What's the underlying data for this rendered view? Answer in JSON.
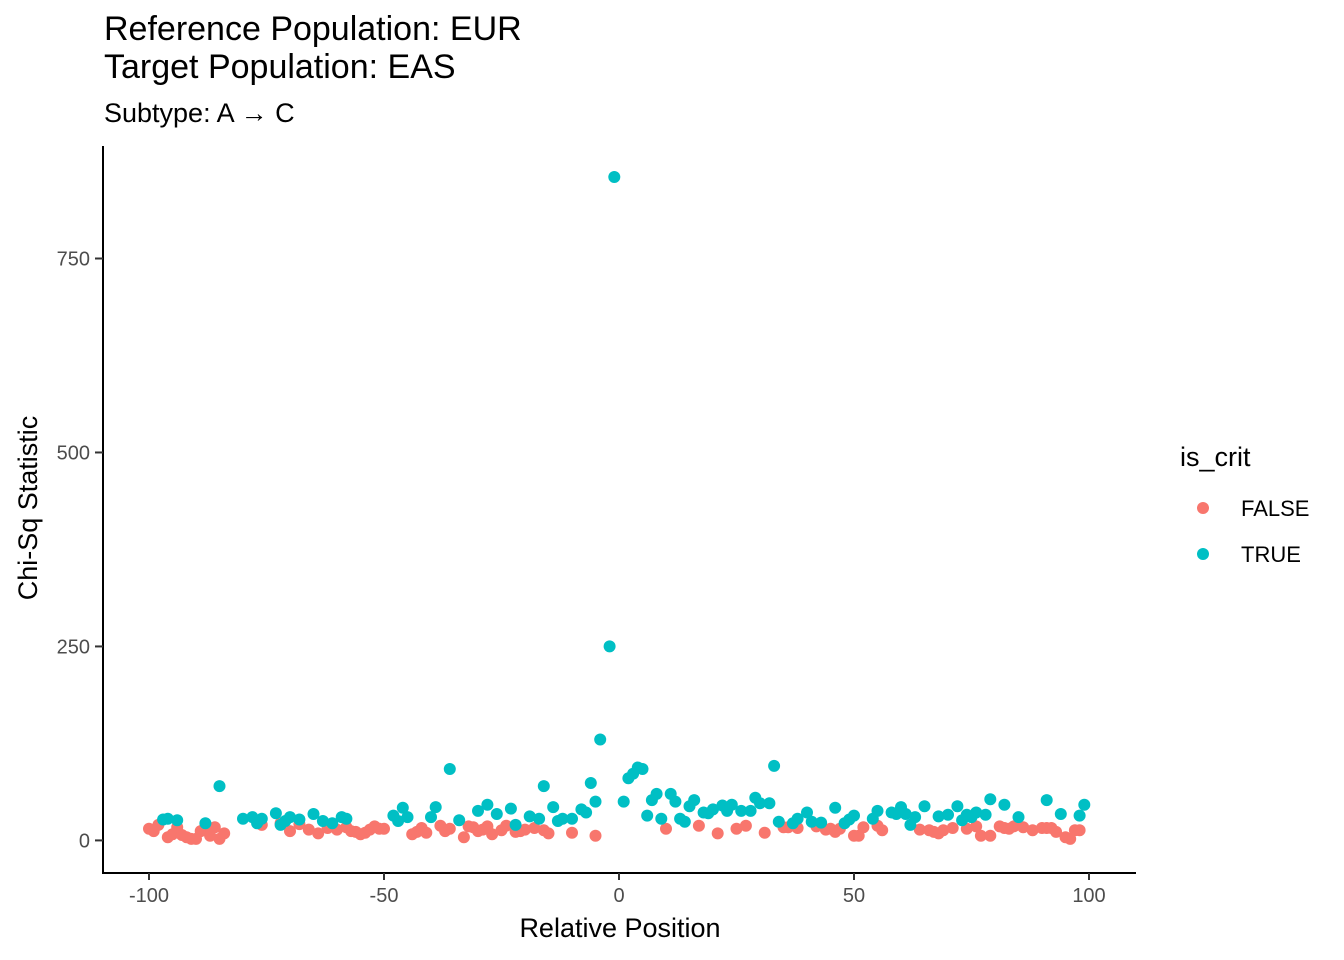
{
  "chart_data": {
    "type": "scatter",
    "title_lines": [
      "Reference Population: EUR",
      "Target Population: EAS"
    ],
    "subtitle": "Subtype: A → C",
    "xlabel": "Relative Position",
    "ylabel": "Chi-Sq Statistic",
    "xlim": [
      -110,
      110
    ],
    "ylim": [
      -42,
      895
    ],
    "xticks": [
      -100,
      -50,
      0,
      50,
      100
    ],
    "xtick_labels": [
      "-100",
      "-50",
      "0",
      "50",
      "100"
    ],
    "yticks": [
      0,
      250,
      500,
      750
    ],
    "ytick_labels": [
      "0",
      "250",
      "500",
      "750"
    ],
    "grid": false,
    "legend": {
      "title": "is_crit",
      "position": "right"
    },
    "series": [
      {
        "name": "FALSE",
        "color": "#F8766D",
        "points": [
          [
            -100,
            15
          ],
          [
            -99,
            12
          ],
          [
            -98,
            20
          ],
          [
            -96,
            4
          ],
          [
            -95,
            8
          ],
          [
            -94,
            17
          ],
          [
            -93,
            7
          ],
          [
            -92,
            4
          ],
          [
            -91,
            2
          ],
          [
            -90,
            2
          ],
          [
            -89,
            12
          ],
          [
            -88,
            19
          ],
          [
            -87,
            6
          ],
          [
            -86,
            17
          ],
          [
            -85,
            2
          ],
          [
            -84,
            9
          ],
          [
            -76,
            20
          ],
          [
            -72,
            22
          ],
          [
            -70,
            12
          ],
          [
            -68,
            21
          ],
          [
            -66,
            14
          ],
          [
            -64,
            9
          ],
          [
            -62,
            16
          ],
          [
            -60,
            14
          ],
          [
            -58,
            17
          ],
          [
            -57,
            12
          ],
          [
            -56,
            11
          ],
          [
            -55,
            8
          ],
          [
            -54,
            10
          ],
          [
            -53,
            14
          ],
          [
            -52,
            18
          ],
          [
            -51,
            15
          ],
          [
            -50,
            15
          ],
          [
            -44,
            8
          ],
          [
            -43,
            11
          ],
          [
            -42,
            16
          ],
          [
            -41,
            10
          ],
          [
            -38,
            19
          ],
          [
            -37,
            12
          ],
          [
            -36,
            15
          ],
          [
            -33,
            4
          ],
          [
            -32,
            18
          ],
          [
            -31,
            17
          ],
          [
            -30,
            12
          ],
          [
            -29,
            14
          ],
          [
            -28,
            18
          ],
          [
            -27,
            8
          ],
          [
            -25,
            13
          ],
          [
            -24,
            19
          ],
          [
            -22,
            11
          ],
          [
            -21,
            12
          ],
          [
            -20,
            14
          ],
          [
            -18,
            16
          ],
          [
            -16,
            13
          ],
          [
            -15,
            9
          ],
          [
            -10,
            10
          ],
          [
            -5,
            6
          ],
          [
            10,
            15
          ],
          [
            17,
            19
          ],
          [
            21,
            9
          ],
          [
            25,
            15
          ],
          [
            27,
            19
          ],
          [
            31,
            10
          ],
          [
            35,
            17
          ],
          [
            36,
            17
          ],
          [
            38,
            16
          ],
          [
            42,
            18
          ],
          [
            44,
            14
          ],
          [
            45,
            15
          ],
          [
            46,
            11
          ],
          [
            47,
            15
          ],
          [
            50,
            6
          ],
          [
            51,
            6
          ],
          [
            52,
            17
          ],
          [
            55,
            19
          ],
          [
            56,
            13
          ],
          [
            64,
            14
          ],
          [
            66,
            13
          ],
          [
            67,
            11
          ],
          [
            68,
            9
          ],
          [
            69,
            13
          ],
          [
            71,
            16
          ],
          [
            74,
            15
          ],
          [
            76,
            18
          ],
          [
            77,
            6
          ],
          [
            79,
            6
          ],
          [
            81,
            18
          ],
          [
            82,
            16
          ],
          [
            83,
            15
          ],
          [
            84,
            18
          ],
          [
            86,
            17
          ],
          [
            88,
            13
          ],
          [
            90,
            16
          ],
          [
            91,
            16
          ],
          [
            92,
            16
          ],
          [
            93,
            11
          ],
          [
            95,
            4
          ],
          [
            96,
            2
          ],
          [
            97,
            13
          ],
          [
            98,
            13
          ]
        ]
      },
      {
        "name": "TRUE",
        "color": "#00BFC4",
        "points": [
          [
            -97,
            27
          ],
          [
            -96,
            28
          ],
          [
            -94,
            26
          ],
          [
            -88,
            22
          ],
          [
            -85,
            70
          ],
          [
            -80,
            28
          ],
          [
            -78,
            30
          ],
          [
            -77,
            22
          ],
          [
            -76,
            28
          ],
          [
            -73,
            35
          ],
          [
            -72,
            20
          ],
          [
            -71,
            25
          ],
          [
            -70,
            30
          ],
          [
            -68,
            27
          ],
          [
            -65,
            34
          ],
          [
            -63,
            25
          ],
          [
            -61,
            22
          ],
          [
            -59,
            30
          ],
          [
            -58,
            28
          ],
          [
            -48,
            32
          ],
          [
            -47,
            25
          ],
          [
            -46,
            42
          ],
          [
            -45,
            30
          ],
          [
            -40,
            30
          ],
          [
            -39,
            43
          ],
          [
            -36,
            92
          ],
          [
            -34,
            26
          ],
          [
            -30,
            38
          ],
          [
            -28,
            46
          ],
          [
            -26,
            34
          ],
          [
            -23,
            41
          ],
          [
            -22,
            20
          ],
          [
            -19,
            31
          ],
          [
            -17,
            28
          ],
          [
            -16,
            70
          ],
          [
            -14,
            43
          ],
          [
            -13,
            25
          ],
          [
            -12,
            28
          ],
          [
            -10,
            28
          ],
          [
            -8,
            40
          ],
          [
            -7,
            36
          ],
          [
            -6,
            74
          ],
          [
            -5,
            50
          ],
          [
            -4,
            130
          ],
          [
            -2,
            250
          ],
          [
            -1,
            855
          ],
          [
            1,
            50
          ],
          [
            2,
            80
          ],
          [
            3,
            86
          ],
          [
            4,
            94
          ],
          [
            5,
            92
          ],
          [
            6,
            32
          ],
          [
            7,
            52
          ],
          [
            8,
            60
          ],
          [
            9,
            28
          ],
          [
            11,
            60
          ],
          [
            12,
            50
          ],
          [
            13,
            28
          ],
          [
            14,
            24
          ],
          [
            15,
            44
          ],
          [
            16,
            52
          ],
          [
            18,
            36
          ],
          [
            19,
            35
          ],
          [
            20,
            40
          ],
          [
            22,
            45
          ],
          [
            23,
            38
          ],
          [
            24,
            46
          ],
          [
            26,
            38
          ],
          [
            28,
            38
          ],
          [
            29,
            55
          ],
          [
            30,
            48
          ],
          [
            32,
            48
          ],
          [
            33,
            96
          ],
          [
            34,
            24
          ],
          [
            37,
            22
          ],
          [
            38,
            28
          ],
          [
            40,
            36
          ],
          [
            41,
            24
          ],
          [
            43,
            23
          ],
          [
            46,
            42
          ],
          [
            48,
            22
          ],
          [
            49,
            27
          ],
          [
            50,
            32
          ],
          [
            54,
            28
          ],
          [
            55,
            38
          ],
          [
            58,
            36
          ],
          [
            59,
            34
          ],
          [
            60,
            43
          ],
          [
            61,
            34
          ],
          [
            62,
            20
          ],
          [
            63,
            30
          ],
          [
            65,
            44
          ],
          [
            68,
            31
          ],
          [
            70,
            33
          ],
          [
            72,
            44
          ],
          [
            73,
            26
          ],
          [
            74,
            33
          ],
          [
            75,
            30
          ],
          [
            76,
            36
          ],
          [
            78,
            33
          ],
          [
            79,
            53
          ],
          [
            82,
            46
          ],
          [
            85,
            30
          ],
          [
            91,
            52
          ],
          [
            94,
            34
          ],
          [
            98,
            32
          ],
          [
            99,
            46
          ]
        ]
      }
    ]
  }
}
